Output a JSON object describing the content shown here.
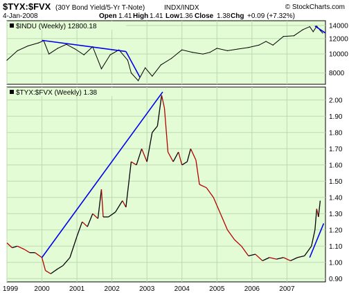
{
  "header": {
    "symbol": "$TYX:$FVX",
    "description": "(30Y Bond Yield/5-Yr T-Note)",
    "exchange": "INDX/INDX",
    "watermark": "© StockCharts.com",
    "date": "4-Jan-2008",
    "open_label": "Open",
    "open": "1.41",
    "high_label": "High",
    "high": "1.41",
    "low_label": "Low",
    "low": "1.36",
    "close_label": "Close",
    "close": "1.38",
    "chg_label": "Chg",
    "chg": "+0.09 (+7.32%)"
  },
  "colors": {
    "panel_bg": "#e3fcd6",
    "grid": "#bcd9b0",
    "indu_line": "#000000",
    "ratio_up": "#000000",
    "ratio_down": "#b30000",
    "trendline": "#0000ee"
  },
  "chart_data": [
    {
      "type": "line",
      "legend": "$INDU (Weekly) 12800.18",
      "x_ticks": [
        "1999",
        "2000",
        "2001",
        "2002",
        "2003",
        "2004",
        "2005",
        "2006",
        "2007"
      ],
      "y_ticks": [
        8000,
        10000,
        12000,
        14000
      ],
      "ylim": [
        7000,
        14800
      ],
      "y_scale": "log",
      "grid": true,
      "points": [
        [
          1999.0,
          9300
        ],
        [
          1999.3,
          10400
        ],
        [
          1999.6,
          11000
        ],
        [
          1999.9,
          11400
        ],
        [
          2000.05,
          11700
        ],
        [
          2000.2,
          10000
        ],
        [
          2000.45,
          10700
        ],
        [
          2000.7,
          11200
        ],
        [
          2000.95,
          10600
        ],
        [
          2001.2,
          9900
        ],
        [
          2001.45,
          10900
        ],
        [
          2001.7,
          8400
        ],
        [
          2001.95,
          9900
        ],
        [
          2002.2,
          10500
        ],
        [
          2002.45,
          9300
        ],
        [
          2002.55,
          8000
        ],
        [
          2002.75,
          7300
        ],
        [
          2002.95,
          8500
        ],
        [
          2003.15,
          7700
        ],
        [
          2003.4,
          8800
        ],
        [
          2003.7,
          9500
        ],
        [
          2004.0,
          10500
        ],
        [
          2004.3,
          10200
        ],
        [
          2004.6,
          10000
        ],
        [
          2004.8,
          10200
        ],
        [
          2005.0,
          10700
        ],
        [
          2005.3,
          10400
        ],
        [
          2005.6,
          10600
        ],
        [
          2005.9,
          10800
        ],
        [
          2006.2,
          11100
        ],
        [
          2006.4,
          11600
        ],
        [
          2006.6,
          11100
        ],
        [
          2006.9,
          12300
        ],
        [
          2007.2,
          12400
        ],
        [
          2007.45,
          13300
        ],
        [
          2007.65,
          13800
        ],
        [
          2007.75,
          13000
        ],
        [
          2007.85,
          13900
        ],
        [
          2007.95,
          13200
        ],
        [
          2008.02,
          12800
        ]
      ],
      "trendlines": [
        [
          [
            2000.0,
            11750
          ],
          [
            2002.4,
            10300
          ]
        ],
        [
          [
            2002.4,
            10300
          ],
          [
            2002.8,
            7600
          ]
        ],
        [
          [
            2007.8,
            13900
          ],
          [
            2008.1,
            12800
          ]
        ]
      ]
    },
    {
      "type": "line",
      "legend": "$TYX:$FVX (Weekly) 1.38",
      "x_ticks": [
        "1999",
        "2000",
        "2001",
        "2002",
        "2003",
        "2004",
        "2005",
        "2006",
        "2007"
      ],
      "y_ticks": [
        0.9,
        1.0,
        1.1,
        1.2,
        1.3,
        1.4,
        1.5,
        1.6,
        1.7,
        1.8,
        1.9,
        2.0
      ],
      "ylim": [
        0.88,
        2.08
      ],
      "grid": true,
      "points": [
        [
          1999.0,
          1.12
        ],
        [
          1999.15,
          1.09
        ],
        [
          1999.3,
          1.1
        ],
        [
          1999.5,
          1.08
        ],
        [
          1999.65,
          1.06
        ],
        [
          1999.8,
          1.06
        ],
        [
          2000.0,
          1.03
        ],
        [
          2000.1,
          0.95
        ],
        [
          2000.25,
          0.93
        ],
        [
          2000.45,
          0.96
        ],
        [
          2000.6,
          0.98
        ],
        [
          2000.8,
          1.03
        ],
        [
          2001.0,
          1.16
        ],
        [
          2001.15,
          1.25
        ],
        [
          2001.3,
          1.22
        ],
        [
          2001.45,
          1.3
        ],
        [
          2001.6,
          1.27
        ],
        [
          2001.7,
          1.45
        ],
        [
          2001.75,
          1.28
        ],
        [
          2001.9,
          1.28
        ],
        [
          2002.1,
          1.31
        ],
        [
          2002.3,
          1.38
        ],
        [
          2002.4,
          1.34
        ],
        [
          2002.55,
          1.62
        ],
        [
          2002.7,
          1.6
        ],
        [
          2002.85,
          1.7
        ],
        [
          2003.0,
          1.62
        ],
        [
          2003.15,
          1.8
        ],
        [
          2003.3,
          1.84
        ],
        [
          2003.42,
          2.03
        ],
        [
          2003.5,
          1.95
        ],
        [
          2003.6,
          1.68
        ],
        [
          2003.75,
          1.62
        ],
        [
          2003.9,
          1.68
        ],
        [
          2004.0,
          1.6
        ],
        [
          2004.15,
          1.62
        ],
        [
          2004.25,
          1.7
        ],
        [
          2004.4,
          1.63
        ],
        [
          2004.5,
          1.48
        ],
        [
          2004.7,
          1.46
        ],
        [
          2004.9,
          1.4
        ],
        [
          2005.1,
          1.3
        ],
        [
          2005.3,
          1.2
        ],
        [
          2005.5,
          1.14
        ],
        [
          2005.7,
          1.1
        ],
        [
          2005.9,
          1.04
        ],
        [
          2006.1,
          1.05
        ],
        [
          2006.3,
          1.01
        ],
        [
          2006.5,
          1.03
        ],
        [
          2006.7,
          1.02
        ],
        [
          2006.9,
          1.03
        ],
        [
          2007.1,
          1.01
        ],
        [
          2007.3,
          1.03
        ],
        [
          2007.5,
          1.04
        ],
        [
          2007.6,
          1.07
        ],
        [
          2007.7,
          1.1
        ],
        [
          2007.8,
          1.2
        ],
        [
          2007.85,
          1.33
        ],
        [
          2007.9,
          1.28
        ],
        [
          2007.95,
          1.38
        ]
      ],
      "trendlines": [
        [
          [
            2000.0,
            1.03
          ],
          [
            2003.45,
            2.05
          ]
        ],
        [
          [
            2007.65,
            1.03
          ],
          [
            2008.05,
            1.24
          ]
        ]
      ]
    }
  ]
}
